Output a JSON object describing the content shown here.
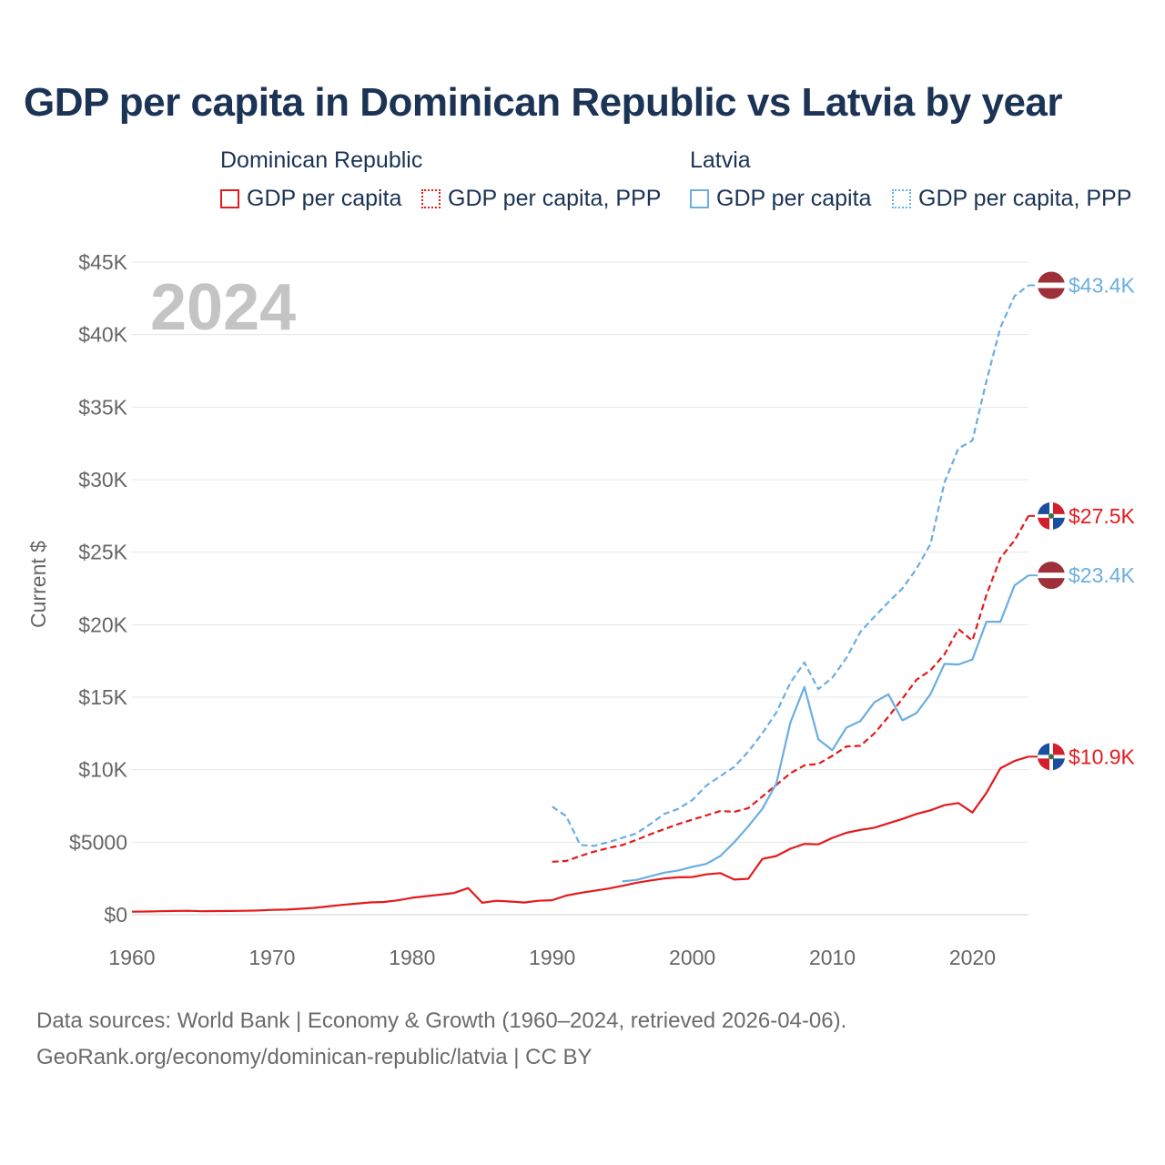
{
  "title": "GDP per capita in Dominican Republic vs Latvia by year",
  "legend": {
    "groups": [
      {
        "name": "Dominican Republic",
        "items": [
          "GDP per capita",
          "GDP per capita, PPP"
        ]
      },
      {
        "name": "Latvia",
        "items": [
          "GDP per capita",
          "GDP per capita, PPP"
        ]
      }
    ]
  },
  "colors": {
    "dominican_republic": "#e41a1c",
    "latvia": "#6aaee2",
    "year_watermark": "#c4c4c4"
  },
  "footer": {
    "line1": "Data sources: World Bank | Economy & Growth (1960–2024, retrieved 2026-04-06).",
    "line2": "GeoRank.org/economy/dominican-republic/latvia | CC BY"
  },
  "chart_data": {
    "type": "line",
    "title": "GDP per capita in Dominican Republic vs Latvia by year",
    "ylabel": "Current $",
    "xlabel": "",
    "year_label": "2024",
    "xlim": [
      1960,
      2024
    ],
    "ylim": [
      0,
      45000
    ],
    "x_ticks": [
      1960,
      1970,
      1980,
      1990,
      2000,
      2010,
      2020
    ],
    "x_tick_labels": [
      "1960",
      "1970",
      "1980",
      "1990",
      "2000",
      "2010",
      "2020"
    ],
    "y_ticks": [
      0,
      5000,
      10000,
      15000,
      20000,
      25000,
      30000,
      35000,
      40000,
      45000
    ],
    "y_tick_labels": [
      "$0",
      "$5000",
      "$10K",
      "$15K",
      "$20K",
      "$25K",
      "$30K",
      "$35K",
      "$40K",
      "$45K"
    ],
    "grid": true,
    "series": [
      {
        "name": "Dominican Republic GDP per capita",
        "country": "Dominican Republic",
        "style": "solid",
        "end_label": "$10.9K",
        "x": [
          1960,
          1961,
          1962,
          1963,
          1964,
          1965,
          1966,
          1967,
          1968,
          1969,
          1970,
          1971,
          1972,
          1973,
          1974,
          1975,
          1976,
          1977,
          1978,
          1979,
          1980,
          1981,
          1982,
          1983,
          1984,
          1985,
          1986,
          1987,
          1988,
          1989,
          1990,
          1991,
          1992,
          1993,
          1994,
          1995,
          1996,
          1997,
          1998,
          1999,
          2000,
          2001,
          2002,
          2003,
          2004,
          2005,
          2006,
          2007,
          2008,
          2009,
          2010,
          2011,
          2012,
          2013,
          2014,
          2015,
          2016,
          2017,
          2018,
          2019,
          2020,
          2021,
          2022,
          2023,
          2024
        ],
        "values": [
          210,
          220,
          240,
          260,
          270,
          240,
          250,
          260,
          270,
          290,
          330,
          350,
          410,
          470,
          570,
          680,
          760,
          850,
          880,
          990,
          1170,
          1280,
          1380,
          1500,
          1840,
          820,
          960,
          910,
          840,
          960,
          1000,
          1320,
          1500,
          1650,
          1800,
          1990,
          2200,
          2360,
          2500,
          2580,
          2600,
          2780,
          2870,
          2420,
          2480,
          3850,
          4050,
          4550,
          4880,
          4850,
          5300,
          5650,
          5850,
          6000,
          6300,
          6600,
          6950,
          7200,
          7550,
          7700,
          7050,
          8400,
          10100,
          10600,
          10900
        ]
      },
      {
        "name": "Dominican Republic GDP per capita, PPP",
        "country": "Dominican Republic",
        "style": "dashed",
        "end_label": "$27.5K",
        "x": [
          1990,
          1991,
          1992,
          1993,
          1994,
          1995,
          1996,
          1997,
          1998,
          1999,
          2000,
          2001,
          2002,
          2003,
          2004,
          2005,
          2006,
          2007,
          2008,
          2009,
          2010,
          2011,
          2012,
          2013,
          2014,
          2015,
          2016,
          2017,
          2018,
          2019,
          2020,
          2021,
          2022,
          2023,
          2024
        ],
        "values": [
          3650,
          3700,
          4050,
          4350,
          4600,
          4800,
          5150,
          5550,
          5900,
          6250,
          6550,
          6850,
          7150,
          7100,
          7350,
          8150,
          8950,
          9750,
          10300,
          10400,
          10950,
          11600,
          11650,
          12500,
          13650,
          14900,
          16200,
          16850,
          17950,
          19700,
          18900,
          22050,
          24600,
          25800,
          27500
        ]
      },
      {
        "name": "Latvia GDP per capita",
        "country": "Latvia",
        "style": "solid",
        "end_label": "$23.4K",
        "x": [
          1995,
          1996,
          1997,
          1998,
          1999,
          2000,
          2001,
          2002,
          2003,
          2004,
          2005,
          2006,
          2007,
          2008,
          2009,
          2010,
          2011,
          2012,
          2013,
          2014,
          2015,
          2016,
          2017,
          2018,
          2019,
          2020,
          2021,
          2022,
          2023,
          2024
        ],
        "values": [
          2300,
          2400,
          2650,
          2900,
          3050,
          3300,
          3500,
          4050,
          5000,
          6100,
          7300,
          9050,
          13250,
          15700,
          12100,
          11350,
          12900,
          13350,
          14650,
          15200,
          13400,
          13900,
          15200,
          17300,
          17250,
          17600,
          20200,
          20200,
          22700,
          23400
        ]
      },
      {
        "name": "Latvia GDP per capita, PPP",
        "country": "Latvia",
        "style": "dashed",
        "end_label": "$43.4K",
        "x": [
          1990,
          1991,
          1992,
          1993,
          1994,
          1995,
          1996,
          1997,
          1998,
          1999,
          2000,
          2001,
          2002,
          2003,
          2004,
          2005,
          2006,
          2007,
          2008,
          2009,
          2010,
          2011,
          2012,
          2013,
          2014,
          2015,
          2016,
          2017,
          2018,
          2019,
          2020,
          2021,
          2022,
          2023,
          2024
        ],
        "values": [
          7450,
          6800,
          4800,
          4750,
          5000,
          5300,
          5600,
          6250,
          6950,
          7300,
          7900,
          8900,
          9550,
          10200,
          11250,
          12500,
          13950,
          16000,
          17400,
          15550,
          16350,
          17700,
          19500,
          20550,
          21550,
          22500,
          23850,
          25550,
          29800,
          32150,
          32700,
          36800,
          40500,
          42650,
          43400
        ]
      }
    ]
  }
}
